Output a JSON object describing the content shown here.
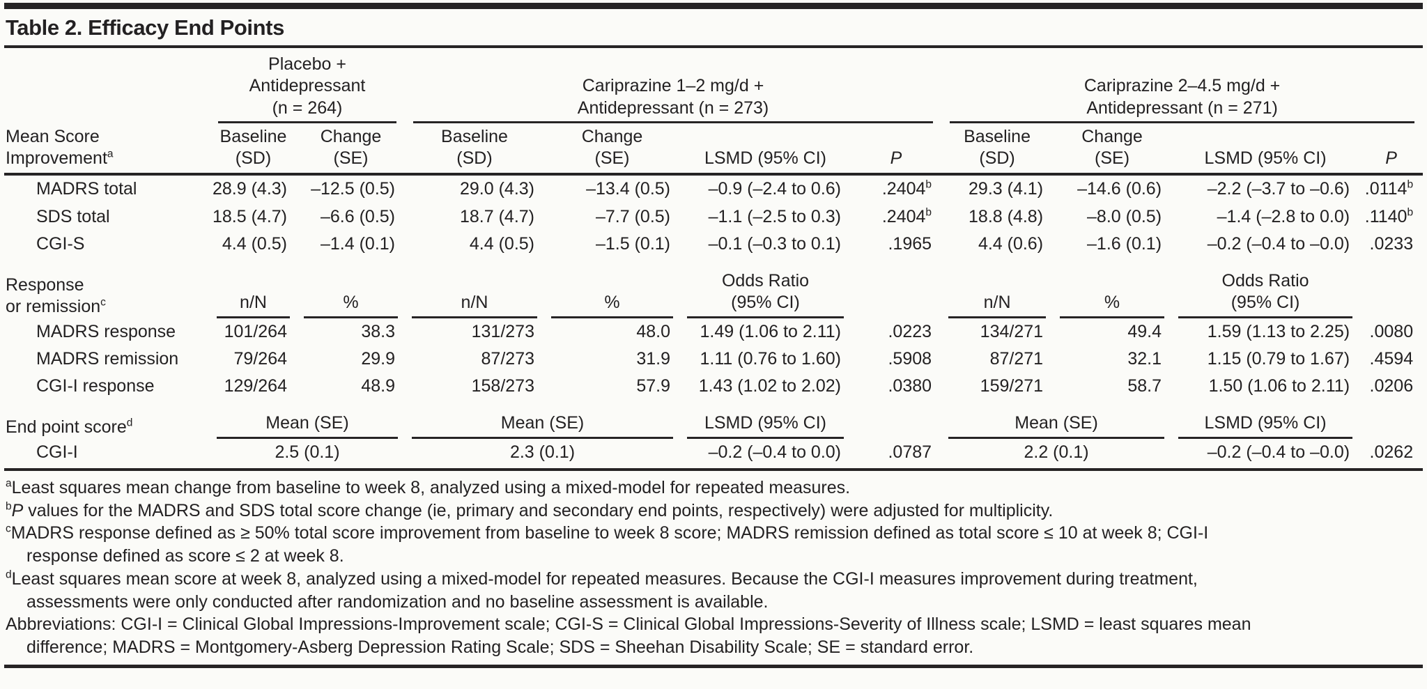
{
  "title": "Table 2. Efficacy End Points",
  "table": {
    "groups": [
      {
        "span": 2,
        "lines": [
          "Placebo +",
          "Antidepressant",
          "(n = 264)"
        ]
      },
      {
        "span": 4,
        "lines": [
          "Cariprazine 1–2 mg/d +",
          "Antidepressant (n = 273)"
        ]
      },
      {
        "span": 4,
        "lines": [
          "Cariprazine 2–4.5 mg/d +",
          "Antidepressant (n = 271)"
        ]
      }
    ],
    "row_header_lines": [
      "Mean Score",
      "Improvement^a"
    ],
    "columns": [
      {
        "lines": [
          "Baseline",
          "(SD)"
        ]
      },
      {
        "lines": [
          "Change",
          "(SE)"
        ]
      },
      {
        "lines": [
          "Baseline",
          "(SD)"
        ]
      },
      {
        "lines": [
          "Change",
          "(SE)"
        ]
      },
      {
        "lines": [
          "LSMD (95% CI)"
        ]
      },
      {
        "lines": [
          "P"
        ],
        "italic": true
      },
      {
        "lines": [
          "Baseline",
          "(SD)"
        ]
      },
      {
        "lines": [
          "Change",
          "(SE)"
        ]
      },
      {
        "lines": [
          "LSMD (95% CI)"
        ]
      },
      {
        "lines": [
          "P"
        ],
        "italic": true
      }
    ],
    "sections": [
      {
        "rows": [
          {
            "label": "MADRS total",
            "cells": [
              "28.9 (4.3)",
              "–12.5 (0.5)",
              "29.0 (4.3)",
              "–13.4 (0.5)",
              "–0.9 (–2.4 to 0.6)",
              ".2404^b",
              "29.3 (4.1)",
              "–14.6 (0.6)",
              "–2.2 (–3.7 to –0.6)",
              ".0114^b"
            ]
          },
          {
            "label": "SDS total",
            "cells": [
              "18.5 (4.7)",
              "–6.6 (0.5)",
              "18.7 (4.7)",
              "–7.7 (0.5)",
              "–1.1 (–2.5 to 0.3)",
              ".2404^b",
              "18.8 (4.8)",
              "–8.0 (0.5)",
              "–1.4 (–2.8 to 0.0)",
              ".1140^b"
            ]
          },
          {
            "label": "CGI-S",
            "cells": [
              "4.4 (0.5)",
              "–1.4 (0.1)",
              "4.4 (0.5)",
              "–1.5 (0.1)",
              "–0.1 (–0.3 to 0.1)",
              ".1965",
              "4.4 (0.6)",
              "–1.6 (0.1)",
              "–0.2 (–0.4 to –0.0)",
              ".0233"
            ]
          }
        ]
      },
      {
        "label_lines": [
          "Response",
          "or remission^c"
        ],
        "subheaders": [
          {
            "span": 1,
            "lines": [
              "n/N"
            ]
          },
          {
            "span": 1,
            "lines": [
              "%"
            ]
          },
          {
            "span": 1,
            "lines": [
              "n/N"
            ]
          },
          {
            "span": 1,
            "lines": [
              "%"
            ]
          },
          {
            "span": 1,
            "lines": [
              "Odds Ratio",
              "(95% CI)"
            ]
          },
          {
            "span": 1,
            "lines": []
          },
          {
            "span": 1,
            "lines": [
              "n/N"
            ]
          },
          {
            "span": 1,
            "lines": [
              "%"
            ]
          },
          {
            "span": 1,
            "lines": [
              "Odds Ratio",
              "(95% CI)"
            ]
          },
          {
            "span": 1,
            "lines": []
          }
        ],
        "rows": [
          {
            "label": "MADRS response",
            "cells": [
              "101/264",
              "38.3",
              "131/273",
              "48.0",
              "1.49 (1.06 to 2.11)",
              ".0223",
              "134/271",
              "49.4",
              "1.59 (1.13 to 2.25)",
              ".0080"
            ]
          },
          {
            "label": "MADRS remission",
            "cells": [
              "79/264",
              "29.9",
              "87/273",
              "31.9",
              "1.11 (0.76 to 1.60)",
              ".5908",
              "87/271",
              "32.1",
              "1.15 (0.79 to 1.67)",
              ".4594"
            ]
          },
          {
            "label": "CGI-I response",
            "cells": [
              "129/264",
              "48.9",
              "158/273",
              "57.9",
              "1.43 (1.02 to 2.02)",
              ".0380",
              "159/271",
              "58.7",
              "1.50 (1.06 to 2.11)",
              ".0206"
            ]
          }
        ]
      },
      {
        "label_lines": [
          "End point score^d"
        ],
        "subheaders": [
          {
            "span": 2,
            "lines": [
              "Mean (SE)"
            ]
          },
          {
            "span": 2,
            "lines": [
              "Mean (SE)"
            ]
          },
          {
            "span": 1,
            "lines": [
              "LSMD (95% CI)"
            ]
          },
          {
            "span": 1,
            "lines": []
          },
          {
            "span": 2,
            "lines": [
              "Mean (SE)"
            ]
          },
          {
            "span": 1,
            "lines": [
              "LSMD (95% CI)"
            ]
          },
          {
            "span": 1,
            "lines": []
          }
        ],
        "rows": [
          {
            "label": "CGI-I",
            "cells_span": [
              {
                "span": 2,
                "text": "2.5 (0.1)",
                "align": "center"
              },
              {
                "span": 2,
                "text": "2.3 (0.1)",
                "align": "center"
              },
              {
                "span": 1,
                "text": "–0.2 (–0.4 to 0.0)"
              },
              {
                "span": 1,
                "text": ".0787"
              },
              {
                "span": 2,
                "text": "2.2 (0.1)",
                "align": "center"
              },
              {
                "span": 1,
                "text": "–0.2 (–0.4 to –0.0)"
              },
              {
                "span": 1,
                "text": ".0262"
              }
            ]
          }
        ]
      }
    ]
  },
  "footnotes": [
    {
      "sup": "a",
      "lines": [
        "Least squares mean change from baseline to week 8, analyzed using a mixed-model for repeated measures."
      ]
    },
    {
      "sup": "b",
      "italic_lead": "P",
      "lines": [
        " values for the MADRS and SDS total score change (ie, primary and secondary end points, respectively) were adjusted for multiplicity."
      ]
    },
    {
      "sup": "c",
      "lines": [
        "MADRS response defined as ≥ 50% total score improvement from baseline to week 8 score; MADRS remission defined as total score ≤ 10 at week 8; CGI-I",
        "response defined as score ≤ 2 at week 8."
      ]
    },
    {
      "sup": "d",
      "lines": [
        "Least squares mean score at week 8, analyzed using a mixed-model for repeated measures. Because the CGI-I measures improvement during treatment,",
        "assessments were only conducted after randomization and no baseline assessment is available."
      ]
    },
    {
      "sup": "",
      "lines": [
        "Abbreviations: CGI-I = Clinical Global Impressions-Improvement scale; CGI-S = Clinical Global Impressions-Severity of Illness scale; LSMD = least squares mean",
        "difference; MADRS = Montgomery-Asberg Depression Rating Scale; SDS = Sheehan Disability Scale; SE = standard error."
      ]
    }
  ]
}
